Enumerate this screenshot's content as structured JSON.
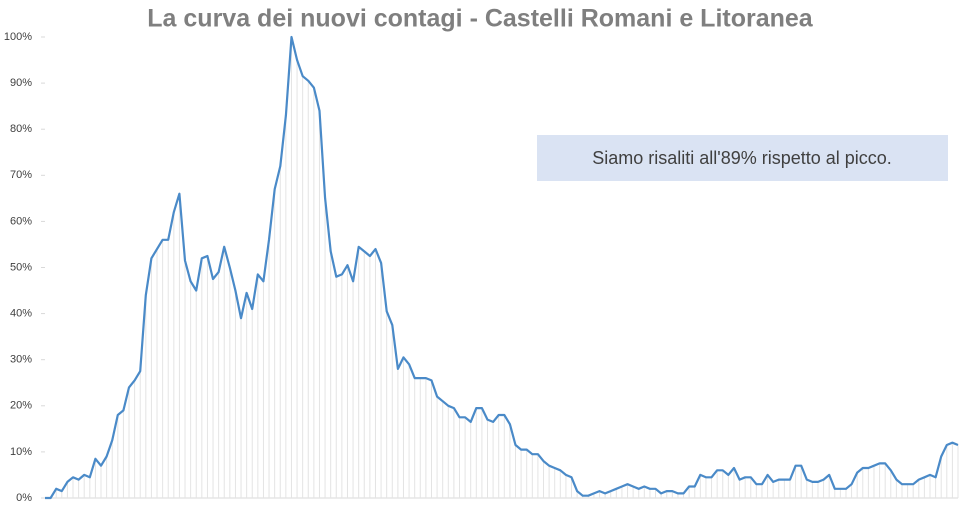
{
  "chart_data": {
    "type": "line",
    "title": "La curva dei nuovi contagi - Castelli Romani e Litoranea",
    "annotation": "Siamo risaliti all'89% rispetto al picco.",
    "color": "#4a8ac8",
    "ylim": [
      0,
      100
    ],
    "yticks": [
      {
        "value": 0,
        "label": "0%"
      },
      {
        "value": 10,
        "label": "10%"
      },
      {
        "value": 20,
        "label": "20%"
      },
      {
        "value": 30,
        "label": "30%"
      },
      {
        "value": 40,
        "label": "40%"
      },
      {
        "value": 50,
        "label": "50%"
      },
      {
        "value": 60,
        "label": "60%"
      },
      {
        "value": 70,
        "label": "70%"
      },
      {
        "value": 80,
        "label": "80%"
      },
      {
        "value": 90,
        "label": "90%"
      },
      {
        "value": 100,
        "label": "100%"
      }
    ],
    "values": [
      0,
      0,
      2,
      1.5,
      3.5,
      4.5,
      4,
      5,
      4.5,
      8.5,
      7,
      9,
      12.5,
      18,
      19,
      24,
      25.5,
      27.5,
      44,
      52,
      54,
      56,
      56,
      62,
      66,
      51.5,
      47,
      45,
      52,
      52.5,
      47.5,
      49,
      54.5,
      50,
      45,
      39,
      44.5,
      41,
      48.5,
      47,
      56,
      67,
      72,
      83,
      100,
      95,
      91.5,
      90.5,
      89,
      84,
      65,
      53.5,
      48,
      48.5,
      50.5,
      47,
      54.5,
      53.5,
      52.5,
      54,
      51,
      40.5,
      37.5,
      28,
      30.5,
      29,
      26,
      26,
      26,
      25.5,
      22,
      21,
      20,
      19.5,
      17.5,
      17.5,
      16.5,
      19.5,
      19.5,
      17,
      16.5,
      18,
      18,
      16,
      11.5,
      10.5,
      10.5,
      9.5,
      9.5,
      8,
      7,
      6.5,
      6,
      5,
      4.5,
      1.5,
      0.5,
      0.5,
      1,
      1.5,
      1,
      1.5,
      2,
      2.5,
      3,
      2.5,
      2,
      2.5,
      2,
      2,
      1,
      1.5,
      1.5,
      1,
      1,
      2.5,
      2.5,
      5,
      4.5,
      4.5,
      6,
      6,
      5,
      6.5,
      4,
      4.5,
      4.5,
      3,
      3,
      5,
      3.5,
      4,
      4,
      4,
      7,
      7,
      4,
      3.5,
      3.5,
      4,
      5,
      2,
      2,
      2,
      3,
      5.5,
      6.5,
      6.5,
      7,
      7.5,
      7.5,
      6,
      4,
      3,
      3,
      3,
      4,
      4.5,
      5,
      4.5,
      9,
      11.5,
      12,
      11.5
    ]
  }
}
